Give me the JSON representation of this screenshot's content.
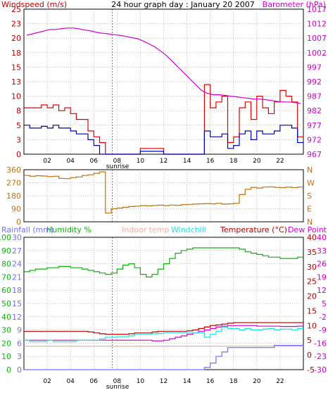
{
  "header": {
    "left_label": "Windspeed (m/s)",
    "title": "24 hour graph day : January 20 2007",
    "right_label": "Barometer (hPa)"
  },
  "colors": {
    "windspeed_max": "#e00000",
    "windspeed_avg": "#0000b0",
    "barometer": "#d000d0",
    "wind_dir": "#c07010",
    "rainfall": "#7070ff",
    "humidity": "#10b010",
    "indoor_temp": "#f0b0a0",
    "windchill": "#20e0e0",
    "temperature": "#b00000",
    "dew_point": "#d000d0",
    "frame": "#000000",
    "grid": "#888888",
    "sunrise_marker": "#000000"
  },
  "legend": {
    "rainfall": "Rainfall (mm)",
    "humidity": "Humidity %",
    "indoor_temp": "Indoor temp",
    "windchill": "Windchill",
    "temperature": "Temperature (°C)",
    "dew_point": "Dew Point"
  },
  "x_axis": {
    "ticks": [
      "02",
      "04",
      "06",
      "08",
      "10",
      "12",
      "14",
      "16",
      "18",
      "20",
      "22"
    ],
    "sunrise_label": "sunrise",
    "sunrise_hour": 7.6
  },
  "chart_data": [
    {
      "type": "line",
      "title": "24 hour graph day : January 20 2007",
      "x_hours": [
        0,
        0.5,
        1,
        1.5,
        2,
        2.5,
        3,
        3.5,
        4,
        4.5,
        5,
        5.5,
        6,
        6.5,
        7,
        7.5,
        8,
        8.5,
        9,
        9.5,
        10,
        10.5,
        11,
        11.5,
        12,
        12.5,
        13,
        13.5,
        14,
        14.5,
        15,
        15.5,
        16,
        16.5,
        17,
        17.5,
        18,
        18.5,
        19,
        19.5,
        20,
        20.5,
        21,
        21.5,
        22,
        22.5,
        23,
        23.5
      ],
      "left_axis": {
        "label": "Windspeed (m/s)",
        "ylim": [
          0,
          25
        ],
        "ticks": [
          "0",
          "3",
          "5",
          "8",
          "10",
          "13",
          "15",
          "18",
          "20",
          "23",
          "25"
        ]
      },
      "right_axis": {
        "label": "Barometer (hPa)",
        "ylim": [
          967,
          1017
        ],
        "ticks": [
          "967",
          "972",
          "977",
          "982",
          "987",
          "992",
          "997",
          "1002",
          "1007",
          "1012",
          "1017"
        ]
      },
      "series": [
        {
          "name": "Windspeed max",
          "axis": "left",
          "values": [
            8,
            8,
            8,
            8.5,
            8,
            8.5,
            7.5,
            8,
            7,
            6,
            6,
            4,
            3,
            2,
            0,
            0,
            0,
            0,
            0,
            0,
            1,
            1,
            1,
            1,
            0,
            0,
            0,
            0,
            0,
            0,
            0,
            12,
            8,
            9,
            10,
            2,
            3,
            8,
            9,
            6,
            10,
            8,
            7,
            9,
            11,
            10,
            9,
            3
          ]
        },
        {
          "name": "Windspeed avg",
          "axis": "left",
          "values": [
            5,
            4.5,
            4.5,
            4.8,
            4.5,
            5,
            4.5,
            4.5,
            4,
            3.5,
            3.5,
            2.5,
            1.5,
            0,
            0,
            0,
            0,
            0,
            0,
            0,
            0.5,
            0.5,
            0.5,
            0.5,
            0,
            0,
            0,
            0,
            0,
            0,
            0,
            4,
            3,
            3,
            3.5,
            1,
            1.5,
            3.5,
            4,
            2.5,
            4,
            3.5,
            3.5,
            4,
            5,
            5,
            4.5,
            2
          ]
        },
        {
          "name": "Barometer",
          "axis": "right",
          "values": [
            1008,
            1008.5,
            1009,
            1009.5,
            1010,
            1010,
            1010.3,
            1010.5,
            1010.5,
            1010.2,
            1009.8,
            1009.5,
            1009,
            1008.7,
            1008.5,
            1008.2,
            1008,
            1007.6,
            1007.2,
            1006.8,
            1006,
            1005,
            1004,
            1002.5,
            1001,
            999,
            997,
            995,
            993,
            991,
            989,
            988,
            987.5,
            987.5,
            987.3,
            987,
            986.8,
            986.5,
            986.3,
            986,
            986,
            985.8,
            985.5,
            985.2,
            985,
            985,
            984.8,
            984.5
          ]
        }
      ]
    },
    {
      "type": "line",
      "title": "",
      "x_hours": [
        0,
        0.5,
        1,
        1.5,
        2,
        2.5,
        3,
        3.5,
        4,
        4.5,
        5,
        5.5,
        6,
        6.5,
        7,
        7.5,
        8,
        8.5,
        9,
        9.5,
        10,
        10.5,
        11,
        11.5,
        12,
        12.5,
        13,
        13.5,
        14,
        14.5,
        15,
        15.5,
        16,
        16.5,
        17,
        17.5,
        18,
        18.5,
        19,
        19.5,
        20,
        20.5,
        21,
        21.5,
        22,
        22.5,
        23,
        23.5
      ],
      "left_axis": {
        "label": "",
        "ylim": [
          0,
          360
        ],
        "ticks": [
          "0",
          "90",
          "180",
          "270",
          "360"
        ]
      },
      "right_axis": {
        "label": "",
        "ticks": [
          "N",
          "E",
          "S",
          "W",
          "N"
        ]
      },
      "series": [
        {
          "name": "Wind direction",
          "axis": "left",
          "values": [
            320,
            315,
            318,
            316,
            312,
            315,
            300,
            298,
            305,
            310,
            320,
            325,
            335,
            345,
            60,
            90,
            95,
            100,
            105,
            108,
            112,
            110,
            113,
            115,
            112,
            116,
            114,
            118,
            120,
            122,
            124,
            126,
            124,
            128,
            122,
            124,
            128,
            188,
            225,
            238,
            233,
            240,
            242,
            238,
            236,
            240,
            236,
            240
          ]
        }
      ]
    },
    {
      "type": "line",
      "title": "",
      "x_hours": [
        0,
        0.5,
        1,
        1.5,
        2,
        2.5,
        3,
        3.5,
        4,
        4.5,
        5,
        5.5,
        6,
        6.5,
        7,
        7.5,
        8,
        8.5,
        9,
        9.5,
        10,
        10.5,
        11,
        11.5,
        12,
        12.5,
        13,
        13.5,
        14,
        14.5,
        15,
        15.5,
        16,
        16.5,
        17,
        17.5,
        18,
        18.5,
        19,
        19.5,
        20,
        20.5,
        21,
        21.5,
        22,
        22.5,
        23,
        23.5
      ],
      "axes": {
        "rainfall": {
          "label": "Rainfall (mm)",
          "ylim": [
            0,
            30
          ],
          "ticks": [
            "0",
            "3",
            "6",
            "9",
            "12",
            "15",
            "18",
            "21",
            "24",
            "27",
            "30"
          ]
        },
        "humidity": {
          "label": "Humidity %",
          "ylim": [
            0,
            100
          ],
          "ticks": [
            "0",
            "10",
            "20",
            "30",
            "40",
            "50",
            "60",
            "70",
            "80",
            "90",
            "100"
          ]
        },
        "temperature_c": {
          "label": "Temperature (°C)",
          "ylim": [
            -5,
            40
          ],
          "ticks": [
            "-5",
            "0",
            "5",
            "10",
            "15",
            "20",
            "25",
            "30",
            "35",
            "40"
          ]
        },
        "temperature_f": {
          "label": "",
          "ylim": [
            -30,
            40
          ],
          "ticks": [
            "-30",
            "-23",
            "-16",
            "-9",
            "-2",
            "5",
            "12",
            "19",
            "26",
            "33",
            "40"
          ]
        }
      },
      "series": [
        {
          "name": "Humidity",
          "axis": "humidity",
          "values": [
            74,
            75,
            76,
            76,
            77,
            77,
            78,
            78,
            77,
            77,
            76,
            75,
            74,
            73,
            72,
            73,
            76,
            79,
            80,
            77,
            72,
            70,
            72,
            76,
            80,
            84,
            88,
            90,
            91,
            92,
            92,
            92,
            92,
            92,
            92,
            92,
            92,
            91,
            89,
            88,
            87,
            86,
            85,
            85,
            84,
            84,
            84,
            85
          ]
        },
        {
          "name": "Temperature",
          "axis": "temperature_c",
          "values": [
            8,
            8,
            8,
            8,
            8,
            8,
            8,
            8,
            8,
            8,
            8,
            7.8,
            7.5,
            7.2,
            7,
            7,
            7,
            7,
            7.2,
            7.5,
            7.5,
            7.5,
            7.8,
            8,
            8,
            8,
            8,
            8,
            8.2,
            8.5,
            9,
            9.5,
            10,
            10.2,
            10.5,
            10.8,
            11,
            11,
            11,
            11,
            11,
            11,
            11,
            11,
            11,
            11,
            11,
            11
          ]
        },
        {
          "name": "Dew Point",
          "axis": "temperature_c",
          "values": [
            5,
            5,
            5,
            5,
            5,
            5,
            5,
            5,
            5,
            5,
            5,
            5,
            5,
            5,
            5,
            5,
            5,
            5,
            5,
            5,
            5,
            5,
            4.8,
            4.8,
            5,
            5.5,
            6,
            6.5,
            7,
            7.5,
            8,
            8.5,
            9,
            9.5,
            9.8,
            10,
            10,
            10,
            10,
            10,
            9.8,
            9.8,
            9.8,
            9.8,
            9.7,
            9.7,
            9.7,
            9.8
          ]
        },
        {
          "name": "Windchill",
          "axis": "temperature_c",
          "values": [
            5,
            4.5,
            4.5,
            4.5,
            5,
            4.5,
            4.5,
            4.5,
            4.5,
            5,
            5,
            5,
            5,
            5.5,
            6,
            6,
            6.2,
            6.2,
            6.5,
            7,
            7,
            7,
            7.2,
            7.3,
            7.5,
            7.5,
            7.5,
            7.5,
            7.5,
            7.5,
            7.5,
            6,
            7,
            8,
            9.5,
            9,
            9,
            8.5,
            9,
            8.5,
            8.5,
            8.8,
            9,
            8.5,
            8.8,
            8.8,
            8.5,
            9
          ]
        },
        {
          "name": "Indoor temp",
          "axis": "temperature_c",
          "values": [
            3,
            3,
            3,
            3,
            3,
            3,
            3,
            3,
            3,
            3,
            3,
            3,
            3,
            3,
            3,
            3,
            3,
            3,
            3,
            3,
            3,
            3,
            3,
            3,
            3,
            3,
            3,
            3,
            3,
            3,
            3,
            3,
            3,
            3,
            3,
            3,
            3,
            3,
            3,
            3,
            3,
            3,
            3,
            3,
            3,
            3,
            3,
            3
          ]
        },
        {
          "name": "Rainfall",
          "axis": "rainfall",
          "values": [
            0,
            0,
            0,
            0,
            0,
            0,
            0,
            0,
            0,
            0,
            0,
            0,
            0,
            0,
            0,
            0,
            0,
            0,
            0,
            0,
            0,
            0,
            0,
            0,
            0,
            0,
            0,
            0,
            0,
            0,
            0,
            0.5,
            1.5,
            3,
            4,
            5,
            5,
            5,
            5,
            5,
            5,
            5,
            5,
            5.5,
            5.5,
            5.5,
            5.5,
            5.5
          ]
        }
      ]
    }
  ]
}
